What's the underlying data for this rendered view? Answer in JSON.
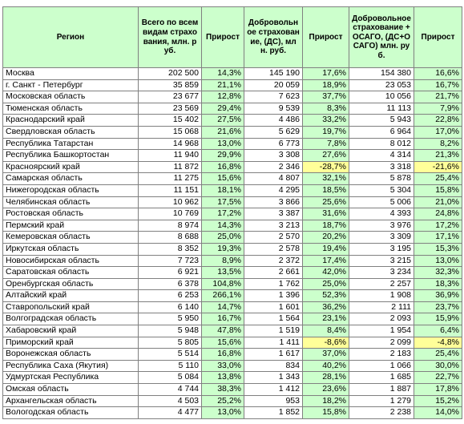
{
  "table": {
    "columns": [
      "Регион",
      "Всего по всем видам страхования, млн. руб.",
      "Прирост",
      "Добровольное страхование, (ДС), млн. руб.",
      "Прирост",
      "Добровольное страхование + ОСАГО, (ДС+ОСАГО) млн. руб.",
      "Прирост"
    ],
    "rows": [
      [
        "Москва",
        "202 500",
        "14,3%",
        "145 190",
        "17,6%",
        "154 380",
        "16,6%"
      ],
      [
        "г. Санкт - Петербург",
        "35 859",
        "21,1%",
        "20 059",
        "18,9%",
        "23 053",
        "16,7%"
      ],
      [
        "Московская область",
        "23 677",
        "12,8%",
        "7 623",
        "37,7%",
        "10 056",
        "21,7%"
      ],
      [
        "Тюменская область",
        "23 569",
        "29,4%",
        "9 539",
        "8,3%",
        "11 113",
        "7,9%"
      ],
      [
        "Краснодарский край",
        "15 402",
        "27,5%",
        "4 486",
        "33,2%",
        "5 943",
        "22,8%"
      ],
      [
        "Свердловская область",
        "15 068",
        "21,6%",
        "5 629",
        "19,7%",
        "6 964",
        "17,0%"
      ],
      [
        "Республика Татарстан",
        "14 968",
        "13,0%",
        "6 773",
        "7,8%",
        "8 012",
        "8,2%"
      ],
      [
        "Республика Башкортостан",
        "11 940",
        "29,9%",
        "3 308",
        "27,6%",
        "4 314",
        "21,3%"
      ],
      [
        "Красноярский край",
        "11 872",
        "16,8%",
        "2 346",
        "-28,7%",
        "3 318",
        "-21,6%"
      ],
      [
        "Самарская область",
        "11 275",
        "15,6%",
        "4 807",
        "32,1%",
        "5 878",
        "25,4%"
      ],
      [
        "Нижегородская область",
        "11 151",
        "18,1%",
        "4 295",
        "18,5%",
        "5 304",
        "15,8%"
      ],
      [
        "Челябинская область",
        "10 962",
        "17,5%",
        "3 866",
        "25,6%",
        "5 006",
        "21,0%"
      ],
      [
        "Ростовская область",
        "10 769",
        "17,2%",
        "3 387",
        "31,6%",
        "4 393",
        "24,8%"
      ],
      [
        "Пермский край",
        "8 974",
        "14,3%",
        "3 213",
        "18,7%",
        "3 976",
        "17,2%"
      ],
      [
        "Кемеровская область",
        "8 688",
        "25,0%",
        "2 570",
        "20,2%",
        "3 309",
        "17,1%"
      ],
      [
        "Иркутская область",
        "8 352",
        "19,3%",
        "2 578",
        "19,4%",
        "3 195",
        "15,3%"
      ],
      [
        "Новосибирская область",
        "7 723",
        "8,9%",
        "2 372",
        "17,4%",
        "3 215",
        "13,0%"
      ],
      [
        "Саратовская область",
        "6 921",
        "13,5%",
        "2 661",
        "42,0%",
        "3 234",
        "32,3%"
      ],
      [
        "Оренбургская область",
        "6 378",
        "104,8%",
        "1 762",
        "25,0%",
        "2 257",
        "18,3%"
      ],
      [
        "Алтайский край",
        "6 253",
        "266,1%",
        "1 396",
        "52,3%",
        "1 908",
        "36,9%"
      ],
      [
        "Ставропольский край",
        "6 140",
        "14,7%",
        "1 601",
        "36,2%",
        "2 111",
        "23,7%"
      ],
      [
        "Волгоградская область",
        "5 950",
        "16,7%",
        "1 564",
        "23,1%",
        "2 093",
        "15,9%"
      ],
      [
        "Хабаровский край",
        "5 948",
        "47,8%",
        "1 519",
        "8,4%",
        "1 954",
        "6,4%"
      ],
      [
        "Приморский край",
        "5 805",
        "15,6%",
        "1 411",
        "-8,6%",
        "2 099",
        "-4,8%"
      ],
      [
        "Воронежская область",
        "5 514",
        "16,8%",
        "1 617",
        "37,0%",
        "2 183",
        "25,4%"
      ],
      [
        "Республика Саха (Якутия)",
        "5 110",
        "33,0%",
        "834",
        "40,2%",
        "1 066",
        "30,0%"
      ],
      [
        "Удмуртская Республика",
        "5 084",
        "13,8%",
        "1 343",
        "28,1%",
        "1 685",
        "22,7%"
      ],
      [
        "Омская область",
        "4 744",
        "38,3%",
        "1 412",
        "23,6%",
        "1 887",
        "17,8%"
      ],
      [
        "Архангельская область",
        "4 503",
        "25,2%",
        "953",
        "18,2%",
        "1 279",
        "15,2%"
      ],
      [
        "Вологодская область",
        "4 477",
        "13,0%",
        "1 852",
        "15,8%",
        "2 238",
        "14,0%"
      ]
    ]
  }
}
